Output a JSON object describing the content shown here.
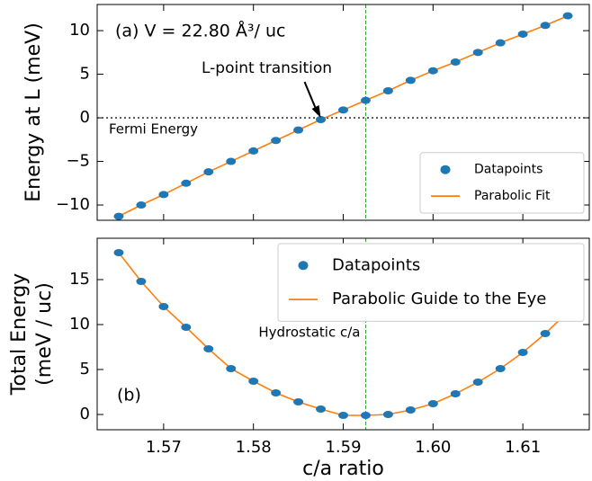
{
  "chart_data": [
    {
      "type": "scatter",
      "ylabel": "Energy at L (meV)",
      "x": [
        1.565,
        1.5675,
        1.57,
        1.5725,
        1.575,
        1.5775,
        1.58,
        1.5825,
        1.585,
        1.5875,
        1.59,
        1.5925,
        1.595,
        1.5975,
        1.6,
        1.6025,
        1.605,
        1.6075,
        1.61,
        1.6125,
        1.615
      ],
      "series": [
        {
          "name": "Datapoints",
          "type": "scatter",
          "color": "#1f77b4",
          "values": [
            -11.3,
            -10.0,
            -8.8,
            -7.5,
            -6.2,
            -5.0,
            -3.8,
            -2.6,
            -1.4,
            -0.2,
            0.9,
            2.0,
            3.1,
            4.3,
            5.4,
            6.4,
            7.5,
            8.6,
            9.6,
            10.6,
            11.7
          ]
        },
        {
          "name": "Parabolic Fit",
          "type": "line",
          "color": "#ff7f0e",
          "values": [
            -11.3,
            -10.0,
            -8.8,
            -7.5,
            -6.2,
            -5.0,
            -3.8,
            -2.6,
            -1.4,
            -0.2,
            0.9,
            2.0,
            3.1,
            4.3,
            5.4,
            6.4,
            7.5,
            8.6,
            9.6,
            10.6,
            11.7
          ]
        }
      ],
      "xlim": [
        1.5626,
        1.6174
      ],
      "xticks": [
        1.57,
        1.58,
        1.59,
        1.6,
        1.61
      ],
      "ylim": [
        -11.75,
        13.0
      ],
      "yticks": [
        {
          "value": -10,
          "label": "−10"
        },
        {
          "value": -5,
          "label": "−5"
        },
        0,
        5,
        10
      ],
      "legend": "lower right",
      "hlines": [
        {
          "y": 0,
          "label": "Fermi Energy",
          "color": "#555555"
        }
      ],
      "vlines": [
        {
          "x": 1.5925,
          "color": "#2ca02c"
        }
      ],
      "annotations": [
        {
          "text": "(a)  V = 22.80 Å³/ uc"
        },
        {
          "text": "L-point transition",
          "xy": [
            1.5875,
            0
          ]
        }
      ]
    },
    {
      "type": "scatter",
      "ylabel": [
        "Total Energy",
        "(meV / uc)"
      ],
      "xlabel": "c/a ratio",
      "x": [
        1.565,
        1.5675,
        1.57,
        1.5725,
        1.575,
        1.5775,
        1.58,
        1.5825,
        1.585,
        1.5875,
        1.59,
        1.5925,
        1.595,
        1.5975,
        1.6,
        1.6025,
        1.605,
        1.6075,
        1.61,
        1.6125,
        1.615
      ],
      "series": [
        {
          "name": "Datapoints",
          "type": "scatter",
          "color": "#1f77b4",
          "values": [
            18.0,
            14.8,
            12.0,
            9.7,
            7.3,
            5.1,
            3.7,
            2.4,
            1.4,
            0.6,
            -0.1,
            -0.1,
            0.0,
            0.5,
            1.2,
            2.3,
            3.6,
            5.1,
            6.9,
            9.0,
            11.4
          ]
        },
        {
          "name": "Parabolic Guide to the Eye",
          "type": "line",
          "color": "#ff7f0e",
          "values": [
            18.0,
            14.8,
            12.0,
            9.7,
            7.3,
            5.1,
            3.7,
            2.4,
            1.4,
            0.6,
            -0.1,
            -0.1,
            0.0,
            0.5,
            1.2,
            2.3,
            3.6,
            5.1,
            6.9,
            9.0,
            11.4
          ]
        }
      ],
      "xlim": [
        1.5626,
        1.6174
      ],
      "xticks": [
        1.57,
        1.58,
        1.59,
        {
          "value": 1.6,
          "label": "1.60"
        },
        1.61
      ],
      "ylim": [
        -1.7,
        19.6
      ],
      "yticks": [
        0,
        5,
        10,
        15
      ],
      "legend": "upper right",
      "vlines": [
        {
          "x": 1.5925,
          "color": "#2ca02c",
          "label": "Hydrostatic c/a"
        }
      ],
      "annotations": [
        {
          "text": "(b)"
        }
      ]
    }
  ]
}
